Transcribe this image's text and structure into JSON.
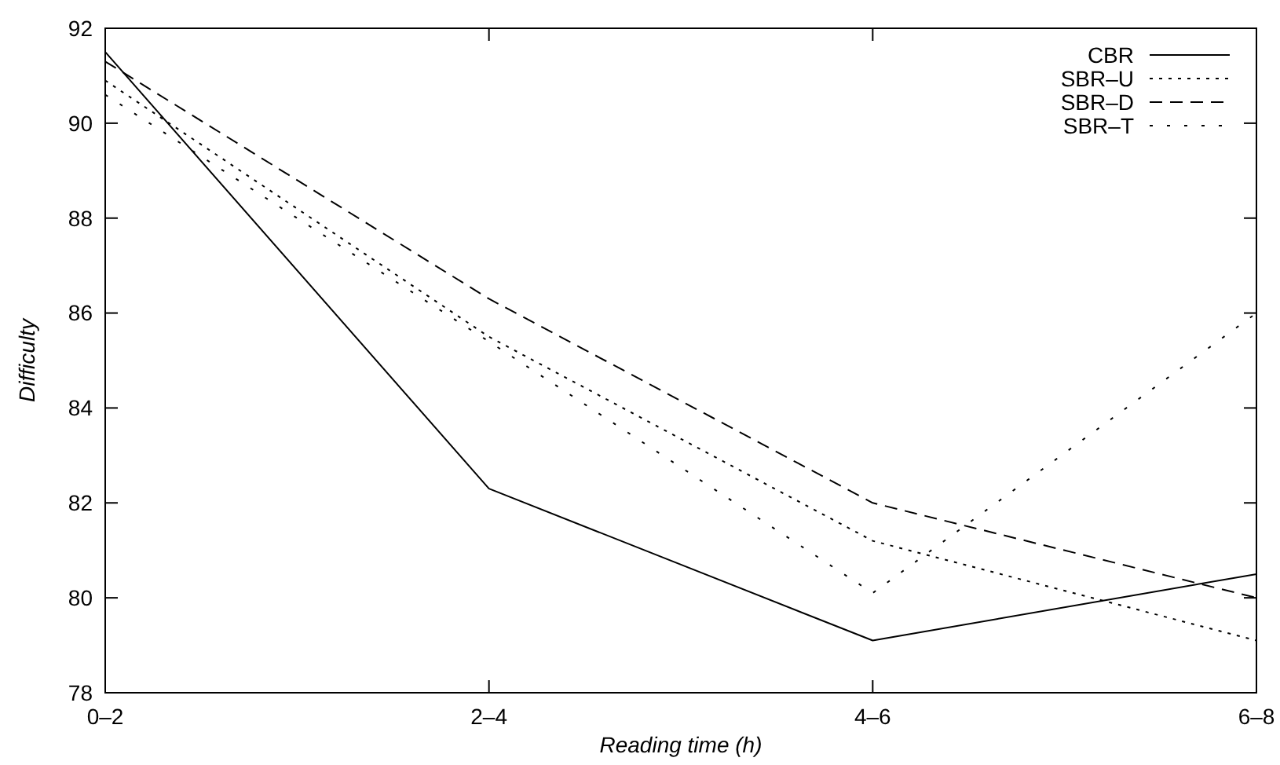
{
  "chart_data": {
    "type": "line",
    "xlabel": "Reading time (h)",
    "ylabel": "Difficulty",
    "categories": [
      "0–2",
      "2–4",
      "4–6",
      "6–8"
    ],
    "series": [
      {
        "name": "CBR",
        "color": "#000000",
        "line_style": "solid",
        "values": [
          91.5,
          82.3,
          79.1,
          80.5
        ]
      },
      {
        "name": "SBR–U",
        "color": "#000000",
        "line_style": "dotted",
        "values": [
          90.9,
          85.5,
          81.2,
          79.1
        ]
      },
      {
        "name": "SBR–D",
        "color": "#000000",
        "line_style": "dashed",
        "values": [
          91.3,
          86.3,
          82.0,
          80.0
        ]
      },
      {
        "name": "SBR–T",
        "color": "#000000",
        "line_style": "sparse",
        "values": [
          90.6,
          85.4,
          80.1,
          86.0
        ]
      }
    ],
    "ylim": [
      78,
      92
    ],
    "yticks": [
      78,
      80,
      82,
      84,
      86,
      88,
      90,
      92
    ],
    "grid": false,
    "legend": "top right",
    "marker": "none"
  }
}
